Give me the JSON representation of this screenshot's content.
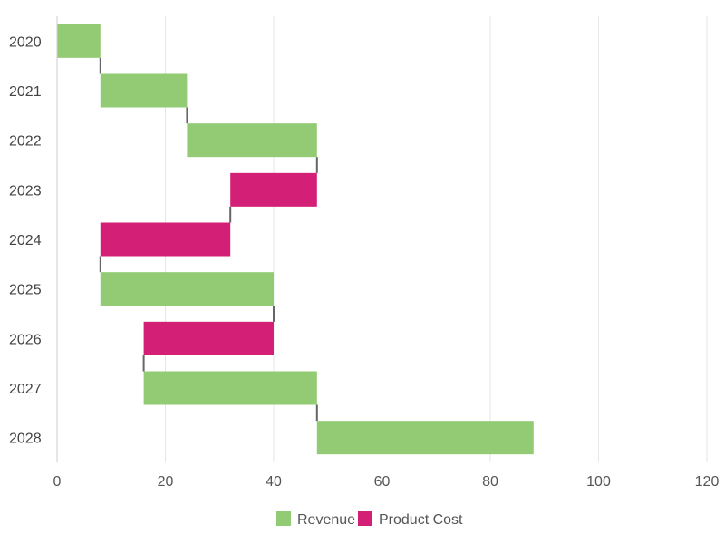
{
  "chart_data": {
    "type": "bar",
    "orientation": "horizontal",
    "subtype": "waterfall",
    "categories": [
      "2020",
      "2021",
      "2022",
      "2023",
      "2024",
      "2025",
      "2026",
      "2027",
      "2028"
    ],
    "bars": [
      {
        "category": "2020",
        "series": "Revenue",
        "start": 0,
        "end": 8
      },
      {
        "category": "2021",
        "series": "Revenue",
        "start": 8,
        "end": 24
      },
      {
        "category": "2022",
        "series": "Revenue",
        "start": 24,
        "end": 48
      },
      {
        "category": "2023",
        "series": "Product Cost",
        "start": 48,
        "end": 32
      },
      {
        "category": "2024",
        "series": "Product Cost",
        "start": 32,
        "end": 8
      },
      {
        "category": "2025",
        "series": "Revenue",
        "start": 8,
        "end": 40
      },
      {
        "category": "2026",
        "series": "Product Cost",
        "start": 40,
        "end": 16
      },
      {
        "category": "2027",
        "series": "Revenue",
        "start": 16,
        "end": 48
      },
      {
        "category": "2028",
        "series": "Revenue",
        "start": 48,
        "end": 88
      }
    ],
    "series": [
      {
        "name": "Revenue",
        "color": "#93cb75"
      },
      {
        "name": "Product Cost",
        "color": "#d41f77"
      }
    ],
    "xlim": [
      0,
      120
    ],
    "xticks": [
      0,
      20,
      40,
      60,
      80,
      100,
      120
    ],
    "grid": true,
    "legend": "bottom-center",
    "connector_color": "#666666"
  }
}
